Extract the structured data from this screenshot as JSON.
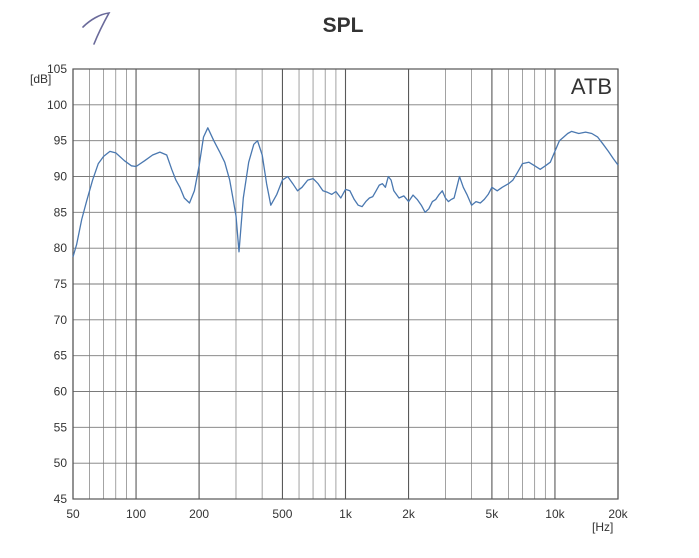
{
  "chart_data": {
    "type": "line",
    "title": "SPL",
    "badge": "ATB",
    "ylabel": "[dB]",
    "xlabel": "[Hz]",
    "x_scale": "log",
    "xlim": [
      50,
      20000
    ],
    "ylim": [
      45,
      105
    ],
    "grid": true,
    "y_ticks": [
      45,
      50,
      55,
      60,
      65,
      70,
      75,
      80,
      85,
      90,
      95,
      100,
      105
    ],
    "x_ticks": [
      {
        "value": 50,
        "label": "50"
      },
      {
        "value": 100,
        "label": "100"
      },
      {
        "value": 200,
        "label": "200"
      },
      {
        "value": 500,
        "label": "500"
      },
      {
        "value": 1000,
        "label": "1k"
      },
      {
        "value": 2000,
        "label": "2k"
      },
      {
        "value": 5000,
        "label": "5k"
      },
      {
        "value": 10000,
        "label": "10k"
      },
      {
        "value": 20000,
        "label": "20k"
      }
    ],
    "series_color": "#4a78b0",
    "x": [
      50,
      52,
      55,
      58,
      62,
      66,
      70,
      75,
      80,
      88,
      95,
      100,
      110,
      120,
      130,
      140,
      148,
      155,
      162,
      170,
      180,
      190,
      200,
      210,
      220,
      235,
      250,
      265,
      280,
      290,
      300,
      310,
      325,
      345,
      365,
      380,
      400,
      420,
      440,
      470,
      500,
      530,
      560,
      590,
      620,
      660,
      700,
      740,
      780,
      820,
      860,
      900,
      950,
      1000,
      1050,
      1100,
      1150,
      1200,
      1250,
      1300,
      1350,
      1400,
      1450,
      1500,
      1550,
      1600,
      1650,
      1700,
      1800,
      1900,
      2000,
      2100,
      2200,
      2300,
      2400,
      2500,
      2600,
      2700,
      2800,
      2900,
      3000,
      3100,
      3200,
      3300,
      3400,
      3500,
      3650,
      3800,
      4000,
      4200,
      4400,
      4600,
      4800,
      5000,
      5300,
      5600,
      6000,
      6300,
      6600,
      7000,
      7500,
      8000,
      8500,
      9000,
      9500,
      10000,
      10500,
      11000,
      11500,
      12000,
      13000,
      14000,
      15000,
      16000,
      17000,
      18000,
      19000,
      20000
    ],
    "values": [
      78.8,
      80.5,
      84.0,
      86.5,
      89.5,
      91.8,
      92.8,
      93.5,
      93.3,
      92.2,
      91.5,
      91.4,
      92.2,
      93.0,
      93.4,
      93.0,
      91.0,
      89.5,
      88.5,
      87.0,
      86.3,
      88.0,
      91.5,
      95.5,
      96.8,
      95.0,
      93.5,
      92.0,
      89.5,
      87.0,
      84.5,
      79.5,
      87.0,
      92.0,
      94.5,
      95.0,
      93.0,
      89.0,
      86.0,
      87.5,
      89.5,
      90.0,
      89.0,
      88.0,
      88.5,
      89.5,
      89.7,
      89.0,
      88.0,
      87.8,
      87.5,
      87.9,
      87.0,
      88.2,
      88.0,
      86.8,
      86.0,
      85.8,
      86.5,
      87.0,
      87.2,
      88.0,
      88.8,
      89.0,
      88.5,
      90.0,
      89.5,
      88.0,
      87.0,
      87.3,
      86.5,
      87.4,
      86.8,
      86.0,
      85.0,
      85.5,
      86.5,
      86.8,
      87.5,
      88.0,
      87.0,
      86.5,
      86.8,
      87.0,
      88.5,
      90.0,
      88.5,
      87.5,
      86.0,
      86.5,
      86.3,
      86.8,
      87.5,
      88.5,
      88.0,
      88.5,
      89.0,
      89.5,
      90.5,
      91.8,
      92.0,
      91.5,
      91.0,
      91.5,
      92.0,
      93.5,
      95.0,
      95.5,
      96.0,
      96.3,
      96.0,
      96.2,
      96.0,
      95.5,
      94.5,
      93.5,
      92.5,
      91.6
    ]
  }
}
